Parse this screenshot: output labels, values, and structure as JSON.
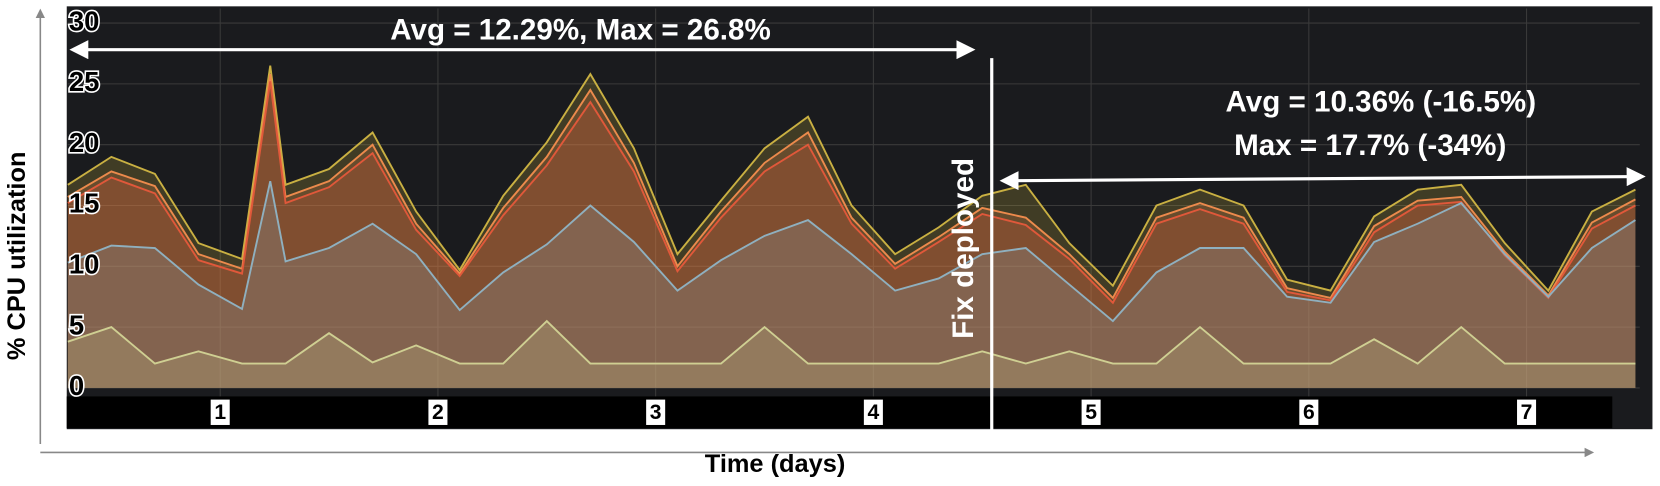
{
  "chart_data": {
    "type": "area",
    "ylabel": "% CPU utilization",
    "xlabel": "Time (days)",
    "annotations": [
      "Avg = 12.29%, Max = 26.8%",
      "Avg = 10.36% (-16.5%)",
      "Max = 17.7%  (-34%)",
      "Fix deployed"
    ],
    "x": [
      0.3,
      0.5,
      0.7,
      0.9,
      1.1,
      1.23,
      1.3,
      1.5,
      1.7,
      1.9,
      2.1,
      2.3,
      2.5,
      2.7,
      2.9,
      3.1,
      3.3,
      3.5,
      3.7,
      3.9,
      4.1,
      4.3,
      4.5,
      4.7,
      4.9,
      5.1,
      5.3,
      5.5,
      5.7,
      5.9,
      6.1,
      6.3,
      6.5,
      6.7,
      6.9,
      7.1,
      7.3,
      7.5
    ],
    "series": [
      {
        "color": "#c9b042",
        "values": [
          16.7,
          19,
          17.6,
          11.9,
          10.6,
          26.5,
          16.7,
          18,
          21,
          14.5,
          9.7,
          15.8,
          20.2,
          25.8,
          19.7,
          11,
          15.4,
          19.7,
          22.3,
          15,
          11,
          13.2,
          15.8,
          16.7,
          11.9,
          8.4,
          15,
          16.3,
          15,
          8.9,
          8,
          14.1,
          16.3,
          16.7,
          11.9,
          8,
          14.5,
          16.3
        ]
      },
      {
        "color": "#ec8a4c",
        "values": [
          15.7,
          17.8,
          16.6,
          11,
          9.8,
          25.8,
          15.7,
          17,
          20,
          13.5,
          9.4,
          14.8,
          19,
          24.5,
          18.5,
          10,
          14.5,
          18.5,
          21,
          14,
          10.2,
          12.4,
          14.8,
          14,
          11,
          7.4,
          14,
          15.2,
          14,
          8.2,
          7.4,
          13.3,
          15.4,
          15.7,
          11.2,
          7.6,
          13.6,
          15.5
        ]
      },
      {
        "color": "#e0583a",
        "values": [
          15.2,
          17.3,
          16,
          10.5,
          9.4,
          25.2,
          15.2,
          16.5,
          19.3,
          13,
          9.2,
          14.2,
          18.3,
          23.5,
          17.8,
          9.6,
          14,
          17.8,
          20,
          13.5,
          9.8,
          12,
          14.3,
          13.4,
          10.6,
          7,
          13.5,
          14.7,
          13.5,
          7.9,
          7.2,
          12.8,
          15,
          15.3,
          10.9,
          7.4,
          13.1,
          15
        ]
      },
      {
        "color": "#8fb0bf",
        "values": [
          10.3,
          11.7,
          11.5,
          8.5,
          6.5,
          17,
          10.4,
          11.5,
          13.5,
          11,
          6.4,
          9.5,
          11.8,
          15,
          12,
          8,
          10.5,
          12.5,
          13.8,
          11,
          8,
          9,
          11,
          11.5,
          8.5,
          5.5,
          9.5,
          11.5,
          11.5,
          7.5,
          7,
          12,
          13.5,
          15.2,
          11,
          7.5,
          11.5,
          13.8
        ]
      },
      {
        "color": "#cfcf92",
        "values": [
          3.8,
          5,
          2,
          3,
          2,
          2,
          2,
          4.5,
          2.1,
          3.5,
          2,
          2,
          5.5,
          2,
          2,
          2,
          2,
          5,
          2,
          2,
          2,
          2,
          3,
          2,
          3,
          2,
          2,
          5,
          2,
          2,
          2,
          4,
          2,
          5,
          2,
          2,
          2,
          2
        ]
      }
    ],
    "xlim": [
      0.3,
      7.52
    ],
    "xticks": [
      1,
      2,
      3,
      4,
      5,
      6,
      7
    ],
    "ylim": [
      -0.7,
      31.2
    ],
    "yticks": [
      0,
      5,
      10,
      15,
      20,
      25,
      30
    ],
    "grid": true
  }
}
